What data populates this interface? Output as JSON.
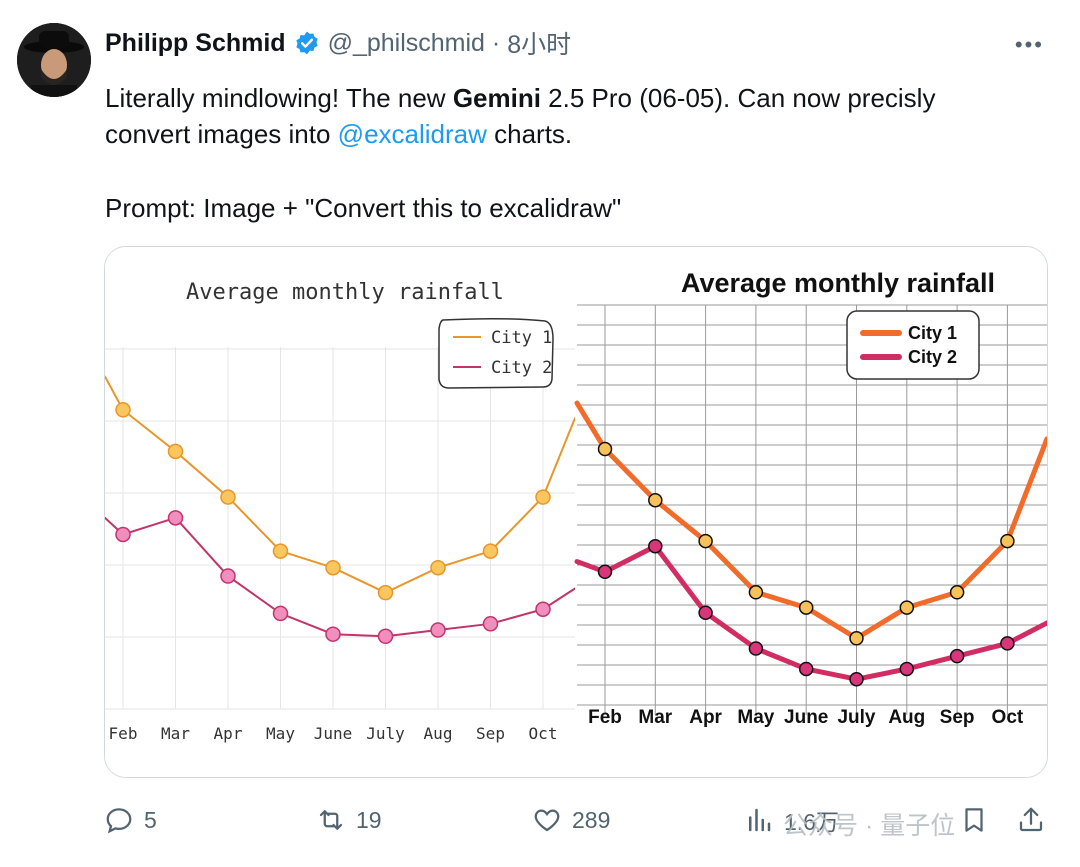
{
  "tweet": {
    "author_name": "Philipp Schmid",
    "handle": "@_philschmid",
    "separator": " · ",
    "time": "8小时",
    "more_label": "•••",
    "text_line1_before": "Literally mindlowing! The new ",
    "text_bold": "Gemini",
    "text_line1_after": " 2.5 Pro (06-05). Can now precisly",
    "text_line2_before": "convert images into ",
    "mention": "@excalidraw",
    "text_line2_after": " charts.",
    "prompt_line": "Prompt: Image + \"Convert this to excalidraw\""
  },
  "actions": {
    "replies": "5",
    "retweets": "19",
    "likes": "289",
    "views": "1.6万"
  },
  "watermark": {
    "text": "公众号 · 量子位"
  },
  "colors": {
    "accent": "#1d9bf0",
    "city1_left": "#e8962a",
    "city2_left": "#c2356a",
    "city1_right": "#f26b2a",
    "city2_right": "#d12d63"
  },
  "chart_data": [
    {
      "type": "line",
      "style": "hand-drawn sketch",
      "title": "Average monthly rainfall",
      "categories": [
        "Feb",
        "Mar",
        "Apr",
        "May",
        "June",
        "July",
        "Aug",
        "Sep",
        "Oct"
      ],
      "series": [
        {
          "name": "City 1",
          "values": [
            82,
            72,
            61,
            48,
            44,
            38,
            44,
            48,
            61
          ]
        },
        {
          "name": "City 2",
          "values": [
            52,
            56,
            42,
            33,
            28,
            27.5,
            29,
            30.5,
            34
          ]
        }
      ],
      "ylim": [
        10,
        100
      ],
      "grid": true,
      "legend": "top-right"
    },
    {
      "type": "line",
      "style": "excalidraw",
      "title": "Average monthly rainfall",
      "categories": [
        "Feb",
        "Mar",
        "Apr",
        "May",
        "June",
        "July",
        "Aug",
        "Sep",
        "Oct"
      ],
      "series": [
        {
          "name": "City 1",
          "values": [
            82,
            72,
            64,
            54,
            51,
            45,
            51,
            54,
            64
          ]
        },
        {
          "name": "City 2",
          "values": [
            58,
            63,
            50,
            43,
            39,
            37,
            39,
            41.5,
            44
          ]
        }
      ],
      "ylim": [
        30,
        100
      ],
      "grid": true,
      "legend": "top-center"
    }
  ]
}
